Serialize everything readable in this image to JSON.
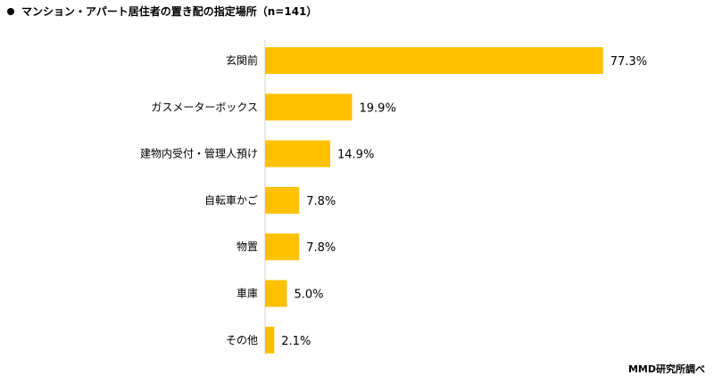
{
  "title": "マンション・アパート居住者の置き配の指定場所（n=141）",
  "credit": "MMD研究所調べ",
  "bar_color": "#FFC000",
  "chart_data": {
    "type": "bar",
    "orientation": "horizontal",
    "title": "マンション・アパート居住者の置き配の指定場所（n=141）",
    "categories": [
      "玄関前",
      "ガスメーターボックス",
      "建物内受付・管理人預け",
      "自転車かご",
      "物置",
      "車庫",
      "その他"
    ],
    "values": [
      77.3,
      19.9,
      14.9,
      7.8,
      7.8,
      5.0,
      2.1
    ],
    "value_labels": [
      "77.3%",
      "19.9%",
      "14.9%",
      "7.8%",
      "7.8%",
      "5.0%",
      "2.1%"
    ],
    "unit": "%",
    "xlim": [
      0,
      100
    ],
    "grid": false,
    "legend": "none"
  }
}
